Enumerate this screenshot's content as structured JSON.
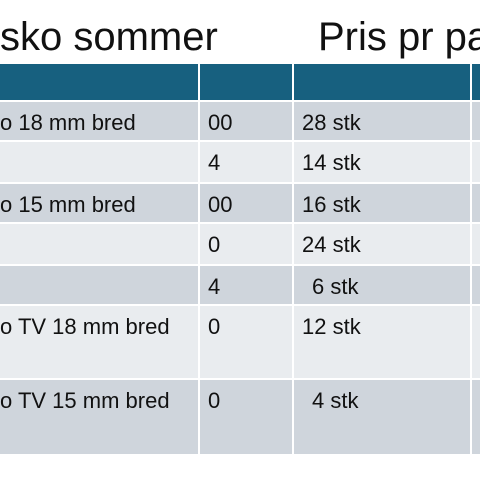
{
  "title": {
    "left": "sko  sommer",
    "right": "Pris pr pa"
  },
  "table": {
    "header": [
      "",
      "",
      "",
      ""
    ],
    "rows": [
      {
        "c1": "o 18 mm bred",
        "c2": "00",
        "c3": "28 stk",
        "c4": ""
      },
      {
        "c1": "",
        "c2": "4",
        "c3": "14 stk",
        "c4": ""
      },
      {
        "c1": "o 15 mm bred",
        "c2": "00",
        "c3": "16 stk",
        "c4": ""
      },
      {
        "c1": "",
        "c2": "0",
        "c3": "24 stk",
        "c4": ""
      },
      {
        "c1": "",
        "c2": "4",
        "c3": "6 stk",
        "c4": ""
      },
      {
        "c1": "o TV 18 mm bred",
        "c2": "0",
        "c3": "12 stk",
        "c4": ""
      },
      {
        "c1": "o TV 15 mm bred",
        "c2": "0",
        "c3": "4 stk",
        "c4": ""
      }
    ]
  },
  "colors": {
    "header": "#17607f",
    "row_dark": "#cfd5dc",
    "row_light": "#e9ecef"
  }
}
